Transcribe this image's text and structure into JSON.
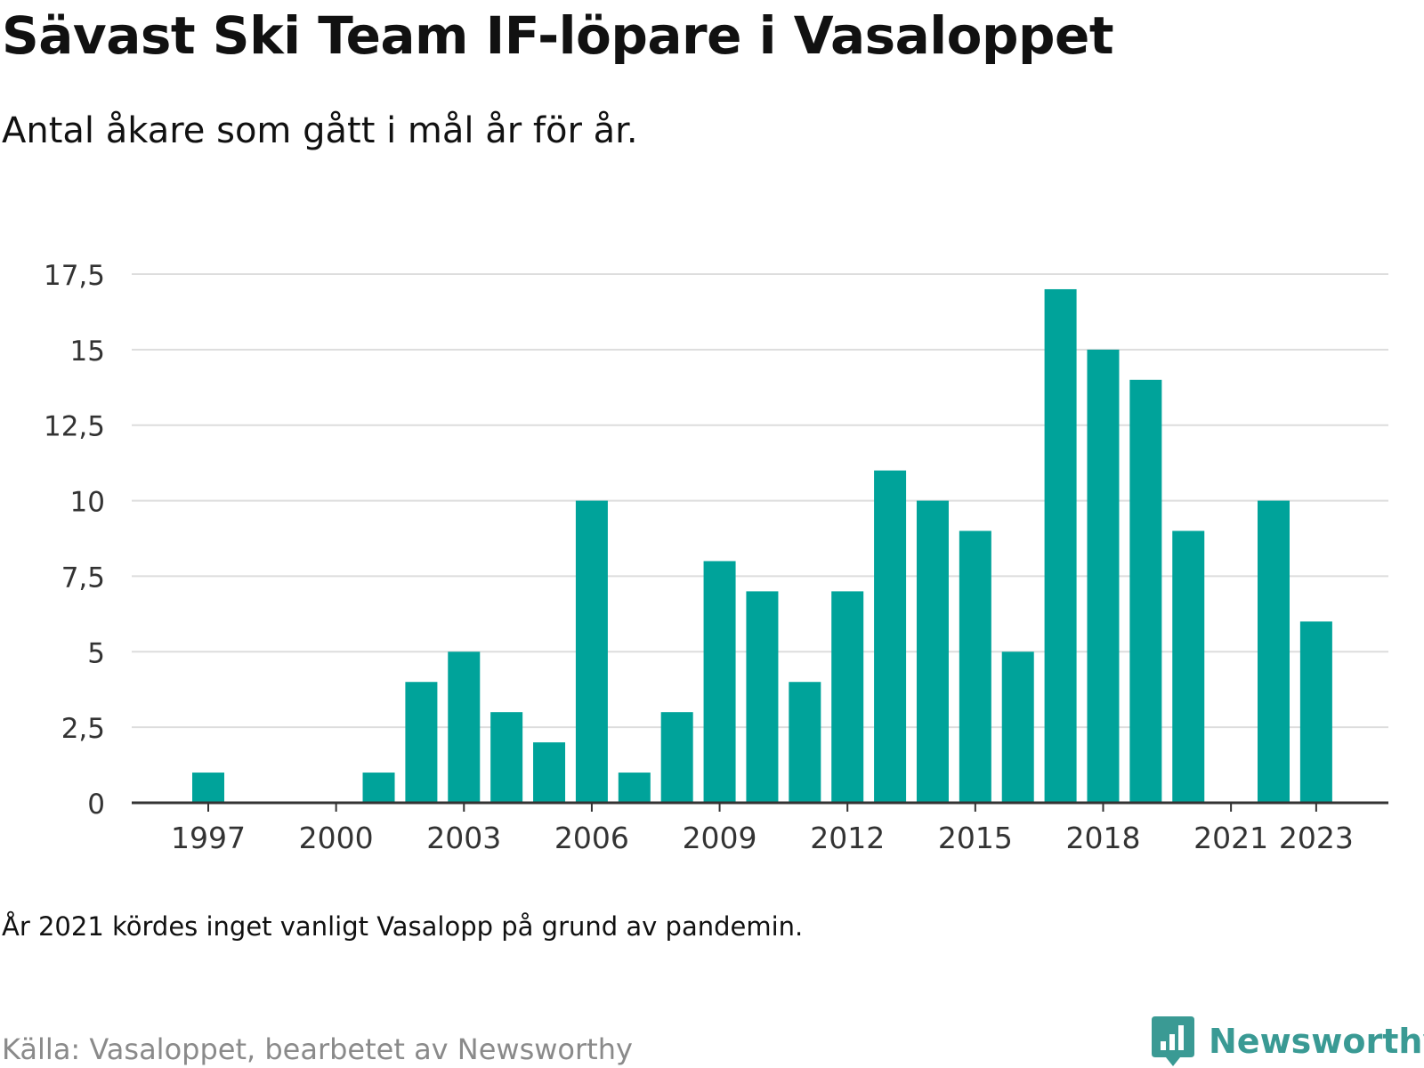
{
  "title": "Sävast Ski Team IF-löpare i Vasaloppet",
  "subtitle": "Antal åkare som gått i mål år för år.",
  "note": "År 2021 kördes inget vanligt Vasalopp på grund av pandemin.",
  "source": "Källa: Vasaloppet, bearbetet av Newsworthy",
  "brand": "Newsworthy",
  "colors": {
    "bar": "#00a39a",
    "grid": "#dddddd",
    "axis": "#333333",
    "brand": "#3a9a94"
  },
  "chart_data": {
    "type": "bar",
    "categories": [
      1997,
      1998,
      1999,
      2000,
      2001,
      2002,
      2003,
      2004,
      2005,
      2006,
      2007,
      2008,
      2009,
      2010,
      2011,
      2012,
      2013,
      2014,
      2015,
      2016,
      2017,
      2018,
      2019,
      2020,
      2021,
      2022,
      2023
    ],
    "values": [
      1,
      0,
      0,
      0,
      1,
      4,
      5,
      3,
      2,
      10,
      1,
      3,
      8,
      7,
      4,
      7,
      11,
      10,
      9,
      5,
      17,
      15,
      14,
      9,
      0,
      10,
      6
    ],
    "x_tick_labels": [
      "1997",
      "2000",
      "2003",
      "2006",
      "2009",
      "2012",
      "2015",
      "2018",
      "2021",
      "2023"
    ],
    "y_ticks": [
      0,
      2.5,
      5,
      7.5,
      10,
      12.5,
      15,
      17.5
    ],
    "y_tick_labels": [
      "0",
      "2,5",
      "5",
      "7,5",
      "10",
      "12,5",
      "15",
      "17,5"
    ],
    "ylim": [
      0,
      17.5
    ],
    "grid": true,
    "legend": "none"
  }
}
